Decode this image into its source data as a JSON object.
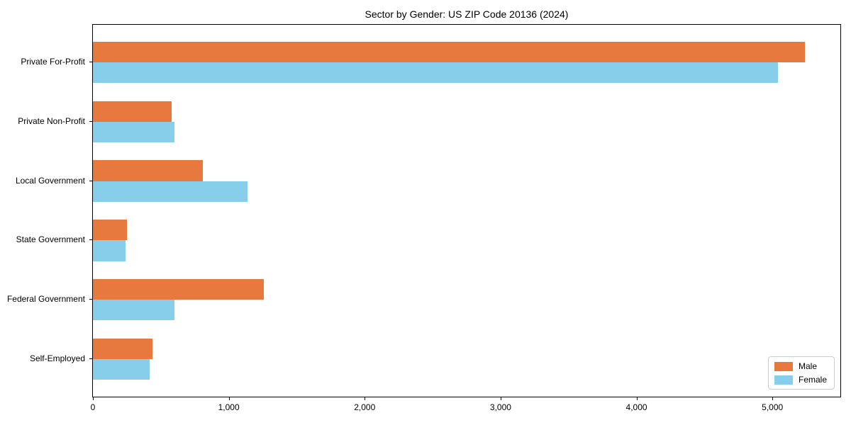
{
  "chart_data": {
    "type": "bar",
    "orientation": "horizontal",
    "title": "Sector by Gender: US ZIP Code 20136 (2024)",
    "xlabel": "",
    "ylabel": "",
    "categories": [
      "Private For-Profit",
      "Private Non-Profit",
      "Local Government",
      "State Government",
      "Federal Government",
      "Self-Employed"
    ],
    "series": [
      {
        "name": "Male",
        "color": "#e8793e",
        "values": [
          5240,
          580,
          810,
          250,
          1260,
          440
        ]
      },
      {
        "name": "Female",
        "color": "#87ceeb",
        "values": [
          5040,
          600,
          1140,
          240,
          600,
          420
        ]
      }
    ],
    "xlim": [
      0,
      5500
    ],
    "x_ticks": [
      0,
      1000,
      2000,
      3000,
      4000,
      5000
    ],
    "x_tick_labels": [
      "0",
      "1,000",
      "2,000",
      "3,000",
      "4,000",
      "5,000"
    ],
    "grid": false,
    "legend_position": "lower right",
    "background_color": "#ffffff",
    "spine_color": "#000000"
  }
}
